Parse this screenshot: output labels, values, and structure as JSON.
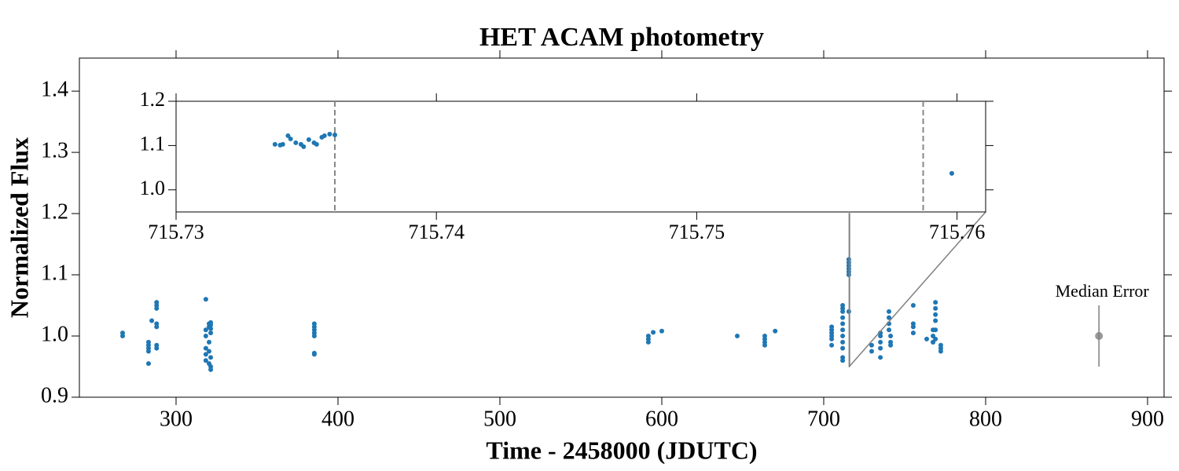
{
  "chart_data": [
    {
      "type": "scatter",
      "title": "HET ACAM photometry",
      "xlabel": "Time - 2458000 (JDUTC)",
      "ylabel": "Normalized Flux",
      "xlim": [
        240.3,
        910.2
      ],
      "ylim": [
        0.9,
        1.454
      ],
      "xticks": [
        300,
        400,
        500,
        600,
        700,
        800,
        900
      ],
      "yticks": [
        0.9,
        {
          "value": 1.0,
          "label": "1.0"
        },
        1.1,
        1.2,
        1.3,
        1.4
      ],
      "series": [
        {
          "color": "#1f77b4",
          "x": [
            267,
            267,
            283,
            283,
            283,
            283,
            283,
            285,
            288,
            288,
            288,
            288,
            288,
            288,
            288,
            318.4,
            318.4,
            318.4,
            318.4,
            318.4,
            318.4,
            320.4,
            320.4,
            320.4,
            320.4,
            320.4,
            321.4,
            321.4,
            321.4,
            321.4,
            321.4,
            321.4,
            321.4,
            385.4,
            385.4,
            385.4,
            385.4,
            385.4,
            385.4,
            385.4,
            591.7,
            591.7,
            591.7,
            594.7,
            600,
            646.6,
            663.6,
            663.6,
            663.6,
            663.6,
            670,
            704.9,
            704.9,
            704.9,
            704.9,
            704.9,
            704.9,
            711.7,
            711.7,
            711.7,
            711.7,
            711.7,
            711.7,
            711.7,
            711.7,
            711.7,
            711.7,
            711.7,
            715.5,
            715.5,
            715.5,
            715.5,
            715.5,
            715.5,
            715.5,
            729.6,
            729.6,
            735,
            735,
            735,
            735,
            735,
            740.3,
            740.3,
            740.3,
            740.3,
            741.3,
            741.3,
            741.3,
            755.3,
            755.3,
            755.3,
            755.3,
            763.6,
            767.5,
            767.5,
            767.5,
            767.5,
            769,
            769,
            769,
            769,
            769,
            769,
            772.3,
            772.3,
            772.3
          ],
          "y": [
            1.005,
            1.0,
            0.955,
            0.975,
            0.98,
            0.985,
            0.99,
            1.025,
            1.055,
            1.05,
            1.045,
            1.02,
            1.015,
            0.985,
            0.98,
            1.06,
            1.01,
            1.0,
            0.98,
            0.97,
            0.96,
            1.02,
            1.015,
            0.99,
            0.975,
            0.955,
            1.022,
            1.018,
            1.012,
            1.005,
            0.965,
            0.95,
            0.945,
            1.02,
            1.015,
            1.01,
            1.005,
            1.0,
            0.972,
            0.97,
            1.0,
            0.995,
            0.99,
            1.006,
            1.008,
            1.0,
            1.0,
            0.995,
            0.99,
            0.985,
            1.008,
            1.015,
            1.01,
            1.005,
            1.0,
            0.995,
            0.985,
            1.05,
            1.045,
            1.04,
            1.03,
            1.02,
            1.01,
            1.0,
            0.99,
            0.98,
            0.965,
            0.96,
            1.125,
            1.12,
            1.115,
            1.11,
            1.105,
            1.1,
            1.04,
            0.985,
            0.975,
            1.005,
            1.0,
            0.99,
            0.98,
            0.965,
            1.04,
            1.03,
            1.02,
            1.01,
            1.0,
            0.99,
            0.985,
            1.05,
            1.02,
            1.015,
            1.005,
            0.995,
            1.01,
            1.0,
            0.99,
            0.99,
            1.055,
            1.045,
            1.035,
            1.025,
            1.01,
            0.995,
            0.985,
            0.98,
            0.975
          ]
        }
      ],
      "median_error": {
        "label": "Median Error",
        "x": 870,
        "y": 1.0,
        "yerr": 0.05,
        "color": "#808080"
      }
    },
    {
      "type": "scatter",
      "xlim": [
        715.73,
        715.7611
      ],
      "ylim": [
        0.95,
        1.2
      ],
      "xticks": [
        715.73,
        715.74,
        715.75,
        715.76
      ],
      "yticks": [
        {
          "value": 1.0,
          "label": "1.0"
        },
        1.1,
        1.2
      ],
      "vlines": [
        715.7361,
        715.7587
      ],
      "series": [
        {
          "color": "#1f77b4",
          "x": [
            715.7338,
            715.734,
            715.7341,
            715.7343,
            715.7344,
            715.7346,
            715.7348,
            715.7349,
            715.7351,
            715.7353,
            715.7354,
            715.7356,
            715.7357,
            715.7359,
            715.7361,
            715.7598
          ],
          "y": [
            1.1027,
            1.1009,
            1.1027,
            1.1221,
            1.115,
            1.1062,
            1.1027,
            1.0973,
            1.1133,
            1.1062,
            1.1027,
            1.1186,
            1.1221,
            1.1257,
            1.1239,
            1.0372
          ]
        }
      ]
    }
  ]
}
